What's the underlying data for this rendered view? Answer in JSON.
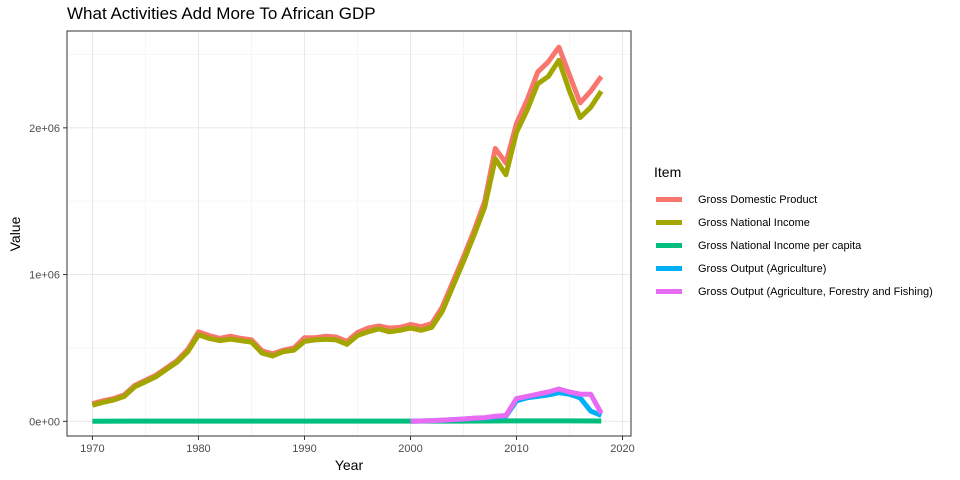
{
  "chart_data": {
    "type": "line",
    "title": "What Activities Add More To African GDP",
    "xlabel": "Year",
    "ylabel": "Value",
    "xlim": [
      1967.6,
      2020.8
    ],
    "ylim": [
      -100000,
      2660000
    ],
    "x_ticks": [
      1970,
      1980,
      1990,
      2000,
      2010,
      2020
    ],
    "x_tick_labels": [
      "1970",
      "1980",
      "1990",
      "2000",
      "2010",
      "2020"
    ],
    "y_ticks": [
      0,
      1000000,
      2000000
    ],
    "y_tick_labels": [
      "0e+00",
      "1e+06",
      "2e+06"
    ],
    "grid": true,
    "legend": {
      "title": "Item",
      "placement": "right"
    },
    "series": [
      {
        "name": "Gross Domestic Product",
        "color": "#F8766D",
        "x": [
          1970,
          1971,
          1972,
          1973,
          1974,
          1975,
          1976,
          1977,
          1978,
          1979,
          1980,
          1981,
          1982,
          1983,
          1984,
          1985,
          1986,
          1987,
          1988,
          1989,
          1990,
          1991,
          1992,
          1993,
          1994,
          1995,
          1996,
          1997,
          1998,
          1999,
          2000,
          2001,
          2002,
          2003,
          2004,
          2005,
          2006,
          2007,
          2008,
          2009,
          2010,
          2011,
          2012,
          2013,
          2014,
          2015,
          2016,
          2017,
          2018
        ],
        "values": [
          120000,
          140000,
          155000,
          180000,
          245000,
          280000,
          315000,
          365000,
          415000,
          490000,
          610000,
          585000,
          565000,
          580000,
          565000,
          555000,
          480000,
          460000,
          485000,
          500000,
          570000,
          570000,
          580000,
          575000,
          545000,
          605000,
          635000,
          650000,
          635000,
          640000,
          660000,
          645000,
          665000,
          780000,
          950000,
          1120000,
          1300000,
          1500000,
          1860000,
          1760000,
          2030000,
          2190000,
          2380000,
          2450000,
          2550000,
          2360000,
          2170000,
          2250000,
          2350000
        ]
      },
      {
        "name": "Gross National Income",
        "color": "#A3A500",
        "x": [
          1970,
          1971,
          1972,
          1973,
          1974,
          1975,
          1976,
          1977,
          1978,
          1979,
          1980,
          1981,
          1982,
          1983,
          1984,
          1985,
          1986,
          1987,
          1988,
          1989,
          1990,
          1991,
          1992,
          1993,
          1994,
          1995,
          1996,
          1997,
          1998,
          1999,
          2000,
          2001,
          2002,
          2003,
          2004,
          2005,
          2006,
          2007,
          2008,
          2009,
          2010,
          2011,
          2012,
          2013,
          2014,
          2015,
          2016,
          2017,
          2018
        ],
        "values": [
          110000,
          130000,
          145000,
          170000,
          235000,
          270000,
          305000,
          355000,
          405000,
          475000,
          590000,
          565000,
          550000,
          560000,
          550000,
          540000,
          465000,
          445000,
          475000,
          485000,
          545000,
          555000,
          560000,
          555000,
          525000,
          585000,
          610000,
          630000,
          610000,
          620000,
          635000,
          620000,
          640000,
          750000,
          920000,
          1090000,
          1270000,
          1460000,
          1790000,
          1680000,
          1970000,
          2120000,
          2300000,
          2350000,
          2460000,
          2250000,
          2070000,
          2140000,
          2250000
        ]
      },
      {
        "name": "Gross National Income per capita",
        "color": "#00BF7D",
        "x": [
          1970,
          1975,
          1980,
          1985,
          1990,
          1995,
          2000,
          2005,
          2010,
          2015,
          2018
        ],
        "values": [
          1000,
          1200,
          1500,
          1300,
          1400,
          1300,
          1300,
          1800,
          2800,
          2600,
          2400
        ]
      },
      {
        "name": "Gross Output (Agriculture)",
        "color": "#00B0F6",
        "x": [
          2000,
          2001,
          2002,
          2003,
          2004,
          2005,
          2006,
          2007,
          2008,
          2009,
          2010,
          2011,
          2012,
          2013,
          2014,
          2015,
          2016,
          2017,
          2018
        ],
        "values": [
          0,
          2000,
          5000,
          8000,
          12000,
          15000,
          20000,
          22000,
          30000,
          35000,
          140000,
          160000,
          170000,
          180000,
          195000,
          185000,
          160000,
          70000,
          40000
        ]
      },
      {
        "name": "Gross Output (Agriculture, Forestry and Fishing)",
        "color": "#E76BF3",
        "x": [
          2000,
          2001,
          2002,
          2003,
          2004,
          2005,
          2006,
          2007,
          2008,
          2009,
          2010,
          2011,
          2012,
          2013,
          2014,
          2015,
          2016,
          2017,
          2018
        ],
        "values": [
          0,
          2000,
          5000,
          8000,
          12000,
          16000,
          22000,
          25000,
          35000,
          40000,
          155000,
          170000,
          185000,
          200000,
          220000,
          200000,
          185000,
          185000,
          55000
        ]
      }
    ]
  }
}
